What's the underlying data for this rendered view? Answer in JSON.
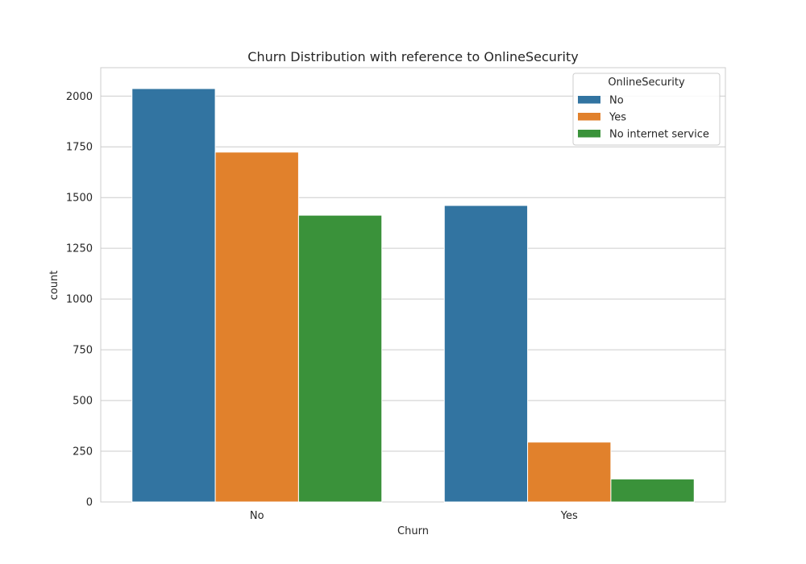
{
  "chart_data": {
    "type": "bar",
    "title": "Churn Distribution with reference to OnlineSecurity",
    "xlabel": "Churn",
    "ylabel": "count",
    "categories": [
      "No",
      "Yes"
    ],
    "series": [
      {
        "name": "No",
        "values": [
          2037,
          1461
        ],
        "color": "#3274a1"
      },
      {
        "name": "Yes",
        "values": [
          1724,
          295
        ],
        "color": "#e1812c"
      },
      {
        "name": "No internet service",
        "values": [
          1413,
          113
        ],
        "color": "#3a923a"
      }
    ],
    "ylim": [
      0,
      2140
    ],
    "yticks": [
      0,
      250,
      500,
      750,
      1000,
      1250,
      1500,
      1750,
      2000
    ],
    "grid": "horizontal",
    "legend": {
      "title": "OnlineSecurity",
      "placement": "top-right"
    }
  }
}
